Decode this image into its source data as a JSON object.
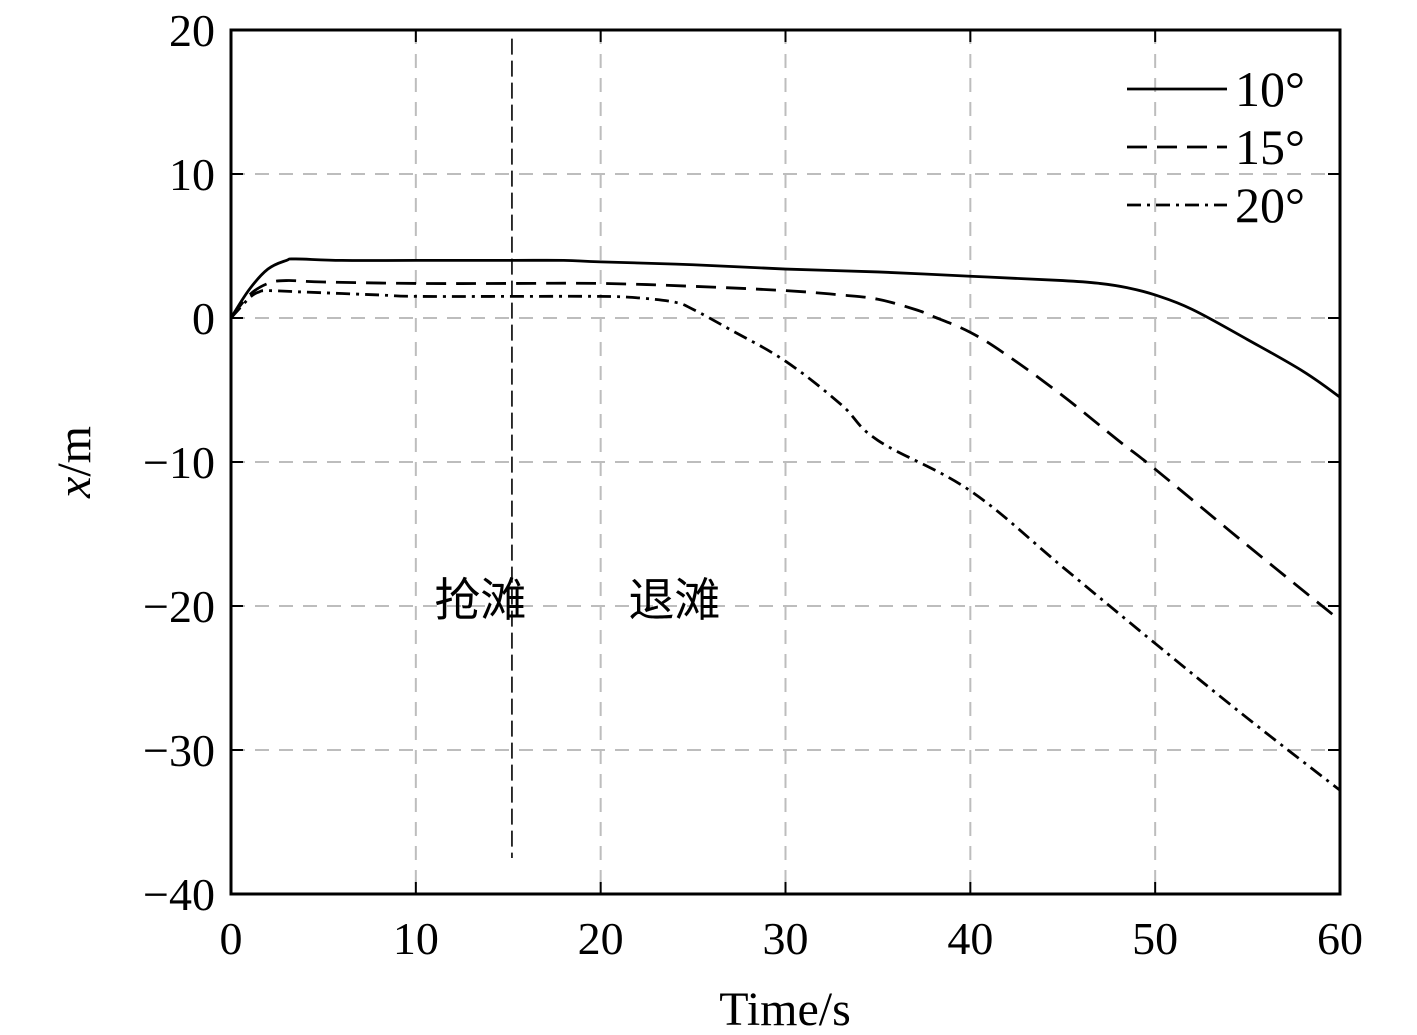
{
  "chart_data": {
    "type": "line",
    "title": "",
    "xlabel": "Time/s",
    "ylabel_var": "x",
    "ylabel_unit": "/m",
    "xlim": [
      0,
      60
    ],
    "ylim": [
      -40,
      20
    ],
    "xticks": [
      "0",
      "10",
      "20",
      "30",
      "40",
      "50",
      "60"
    ],
    "yticks": [
      "20",
      "10",
      "0",
      "−10",
      "−20",
      "−30",
      "−40"
    ],
    "grid": true,
    "legend_position": "top-right",
    "series": [
      {
        "name": "10°",
        "style": "solid",
        "x": [
          0,
          1,
          2,
          3,
          3.5,
          6,
          10,
          15,
          18,
          20,
          25,
          30,
          35,
          40,
          45,
          47,
          48.5,
          50,
          52,
          55,
          58,
          60
        ],
        "y": [
          0,
          2.0,
          3.4,
          4.0,
          4.1,
          4.0,
          4.0,
          4.0,
          4.0,
          3.9,
          3.7,
          3.4,
          3.2,
          2.9,
          2.6,
          2.4,
          2.1,
          1.6,
          0.6,
          -1.5,
          -3.7,
          -5.5
        ]
      },
      {
        "name": "15°",
        "style": "dashed",
        "x": [
          0,
          1,
          2,
          3,
          5,
          10,
          15,
          20,
          25,
          30,
          33,
          35,
          37,
          38,
          40,
          42,
          45,
          48,
          50,
          55,
          60
        ],
        "y": [
          0,
          1.6,
          2.4,
          2.6,
          2.5,
          2.4,
          2.4,
          2.4,
          2.2,
          1.9,
          1.6,
          1.3,
          0.6,
          0.1,
          -1.0,
          -2.6,
          -5.4,
          -8.5,
          -10.5,
          -15.8,
          -21.0
        ]
      },
      {
        "name": "20°",
        "style": "dashdot",
        "x": [
          0,
          1,
          1.5,
          2,
          4,
          8,
          10,
          15,
          20,
          22,
          24,
          25,
          27,
          30,
          33,
          35,
          40,
          45,
          50,
          55,
          60
        ],
        "y": [
          0,
          1.4,
          1.8,
          1.9,
          1.8,
          1.6,
          1.5,
          1.5,
          1.5,
          1.4,
          1.1,
          0.6,
          -0.8,
          -3.0,
          -6.0,
          -8.5,
          -12.0,
          -17.3,
          -22.6,
          -27.8,
          -32.8
        ]
      }
    ],
    "vline": {
      "x": 15.2,
      "y_top": 19.4,
      "y_bottom": -37.5
    },
    "annotations": [
      {
        "text": "抢滩",
        "x": 11.0,
        "y": -20.7
      },
      {
        "text": "退滩",
        "x": 21.5,
        "y": -20.7
      }
    ]
  }
}
